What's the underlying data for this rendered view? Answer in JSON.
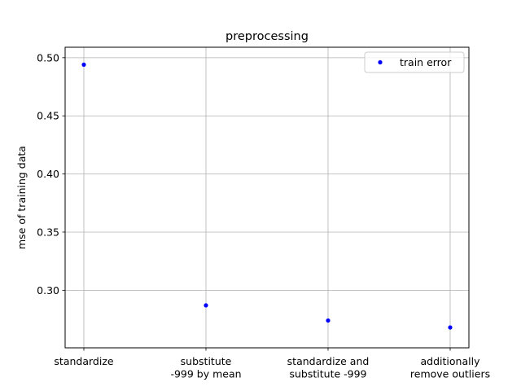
{
  "chart_data": {
    "type": "scatter",
    "title": "preprocessing",
    "xlabel": "",
    "ylabel": "mse of training data",
    "categories": [
      [
        "standardize"
      ],
      [
        "substitute",
        "-999 by mean"
      ],
      [
        "standardize and",
        "substitute -999"
      ],
      [
        "additionally",
        "remove outliers"
      ]
    ],
    "series": [
      {
        "name": "train error",
        "color": "#0000ff",
        "values": [
          0.494,
          0.287,
          0.274,
          0.268
        ]
      }
    ],
    "ylim": [
      0.2505,
      0.509
    ],
    "yticks": [
      0.3,
      0.35,
      0.4,
      0.45,
      0.5
    ],
    "ytick_labels": [
      "0.30",
      "0.35",
      "0.40",
      "0.45",
      "0.50"
    ],
    "grid": true,
    "legend_position": "top-right"
  }
}
